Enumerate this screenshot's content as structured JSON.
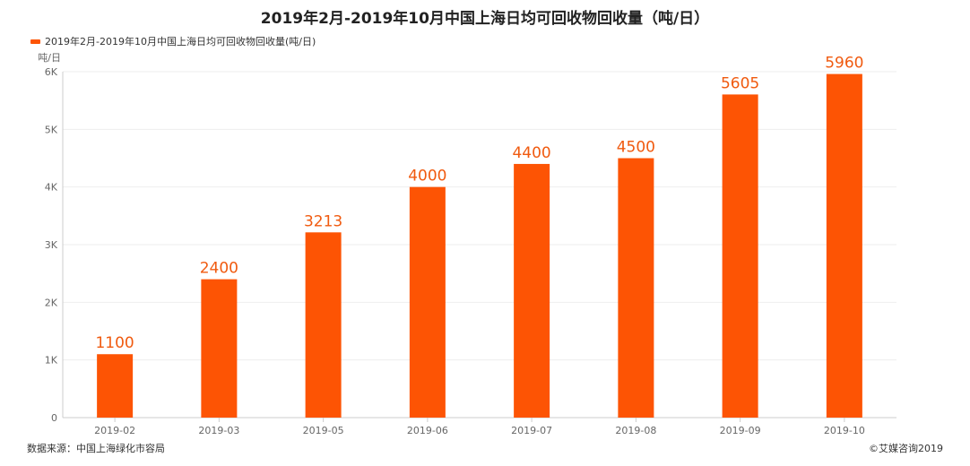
{
  "chart_data": {
    "type": "bar",
    "title": "2019年2月-2019年10月中国上海日均可回收物回收量（吨/日）",
    "ylabel": "吨/日",
    "xlabel": "",
    "categories": [
      "2019-02",
      "2019-03",
      "2019-05",
      "2019-06",
      "2019-07",
      "2019-08",
      "2019-09",
      "2019-10"
    ],
    "series": [
      {
        "name": "2019年2月-2019年10月中国上海日均可回收物回收量(吨/日)",
        "values": [
          1100,
          2400,
          3213,
          4000,
          4400,
          4500,
          5605,
          5960
        ],
        "color": "#fd5404"
      }
    ],
    "ylim": [
      0,
      6000
    ],
    "yticks": [
      0,
      1000,
      2000,
      3000,
      4000,
      5000,
      6000
    ],
    "ytick_labels": [
      "0",
      "1K",
      "2K",
      "3K",
      "4K",
      "5K",
      "6K"
    ],
    "grid": true,
    "legend_position": "top-left"
  },
  "footer": {
    "source": "数据来源：中国上海绿化市容局",
    "copyright": "©艾媒咨询2019"
  },
  "colors": {
    "bar": "#fd5404",
    "label": "#f05a0f",
    "grid": "#eeeeee",
    "axis": "#cccccc"
  }
}
